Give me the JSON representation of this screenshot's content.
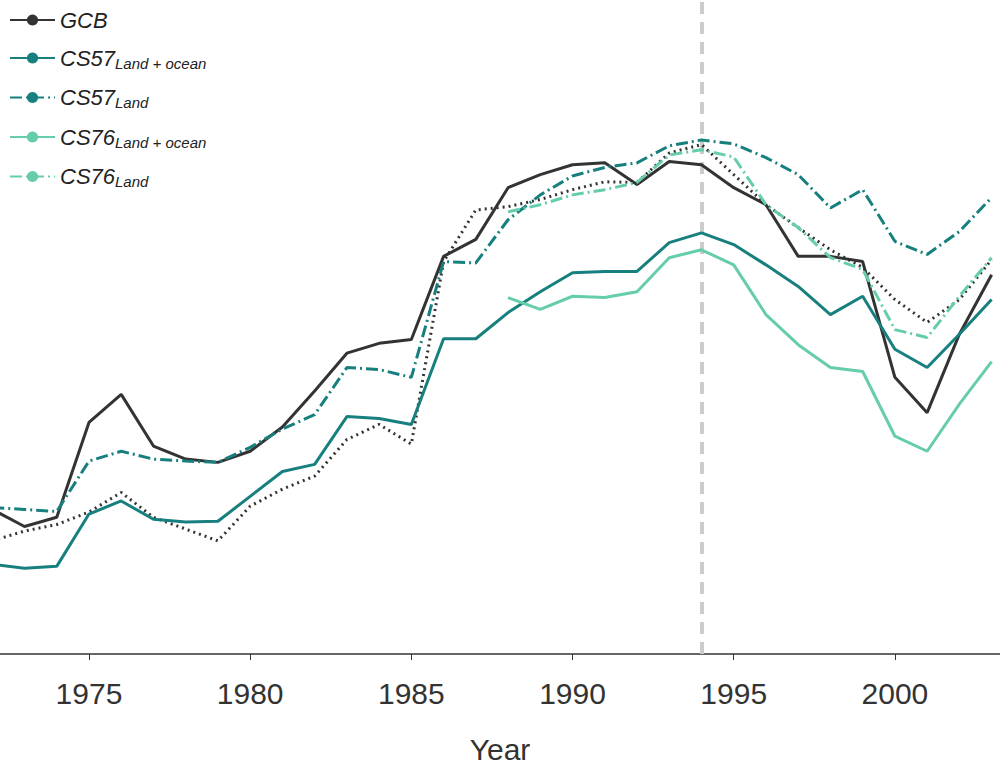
{
  "chart_data": {
    "type": "line",
    "x_label": "Year",
    "x": [
      1972,
      1973,
      1974,
      1975,
      1976,
      1977,
      1978,
      1979,
      1980,
      1981,
      1982,
      1983,
      1984,
      1985,
      1986,
      1987,
      1988,
      1989,
      1990,
      1991,
      1992,
      1993,
      1994,
      1995,
      1996,
      1997,
      1998,
      1999,
      2000,
      2001,
      2002,
      2003
    ],
    "xlim": [
      1972.24,
      2003.26
    ],
    "xticks": [
      1975,
      1980,
      1985,
      1990,
      1995,
      2000
    ],
    "ylim": [
      0,
      100
    ],
    "tick_labels": "x",
    "grid": false,
    "legend": "upper left",
    "reference_line_x": 1994,
    "series": [
      {
        "name": "GCB",
        "color": "#333333",
        "line_style": "solid",
        "values": [
          22.1,
          19.5,
          20.9,
          35.4,
          39.7,
          31.8,
          29.8,
          29.3,
          31.0,
          34.7,
          40.2,
          46.0,
          47.5,
          48.1,
          60.8,
          63.4,
          71.3,
          73.3,
          74.8,
          75.1,
          71.8,
          75.3,
          74.8,
          71.3,
          68.7,
          60.8,
          60.8,
          60.0,
          42.3,
          36.9,
          48.9,
          58.0
        ]
      },
      {
        "name": null,
        "color": "#333333",
        "line_style": "dotted",
        "values": [
          17.3,
          18.8,
          19.8,
          21.7,
          24.7,
          20.9,
          19.1,
          17.3,
          22.6,
          25.2,
          27.2,
          32.8,
          35.1,
          32.1,
          60.0,
          67.9,
          68.4,
          69.5,
          71.0,
          72.2,
          72.1,
          76.6,
          77.9,
          73.3,
          68.7,
          65.2,
          61.8,
          59.1,
          54.2,
          50.7,
          54.2,
          60.3
        ]
      },
      {
        "name": "CS57Land + ocean",
        "color": "#17807e",
        "line_style": "solid",
        "values": [
          13.7,
          13.1,
          13.4,
          21.4,
          23.4,
          20.6,
          20.2,
          20.3,
          24.1,
          27.9,
          29.0,
          36.3,
          36.0,
          35.1,
          48.2,
          48.2,
          52.2,
          55.4,
          58.3,
          58.5,
          58.5,
          62.9,
          64.4,
          62.6,
          59.5,
          56.2,
          51.9,
          54.7,
          46.6,
          43.8,
          48.9,
          54.2
        ]
      },
      {
        "name": "CS57Land",
        "color": "#17807e",
        "line_style": "dashdot",
        "values": [
          22.4,
          22.1,
          21.8,
          29.5,
          31.0,
          29.8,
          29.5,
          29.3,
          31.6,
          34.4,
          36.6,
          43.8,
          43.5,
          42.3,
          60.0,
          59.8,
          66.4,
          70.2,
          73.1,
          74.4,
          75.1,
          77.7,
          78.6,
          78.0,
          75.9,
          73.3,
          68.2,
          71.0,
          63.1,
          61.1,
          64.6,
          69.8
        ]
      },
      {
        "name": "CS76Land + ocean",
        "color": "#66cdaa",
        "line_style": "solid",
        "values": [
          null,
          null,
          null,
          null,
          null,
          null,
          null,
          null,
          null,
          null,
          null,
          null,
          null,
          null,
          null,
          null,
          54.5,
          52.7,
          54.7,
          54.5,
          55.4,
          60.6,
          61.8,
          59.5,
          51.9,
          47.3,
          43.8,
          43.2,
          33.3,
          31.0,
          38.2,
          44.7
        ]
      },
      {
        "name": "CS76Land",
        "color": "#66cdaa",
        "line_style": "dashdot",
        "values": [
          null,
          null,
          null,
          null,
          null,
          null,
          null,
          null,
          null,
          null,
          null,
          null,
          null,
          null,
          null,
          null,
          67.6,
          68.7,
          70.2,
          71.0,
          72.1,
          76.3,
          77.1,
          76.0,
          68.7,
          65.2,
          60.6,
          58.8,
          49.6,
          48.4,
          54.7,
          60.6
        ]
      }
    ]
  }
}
